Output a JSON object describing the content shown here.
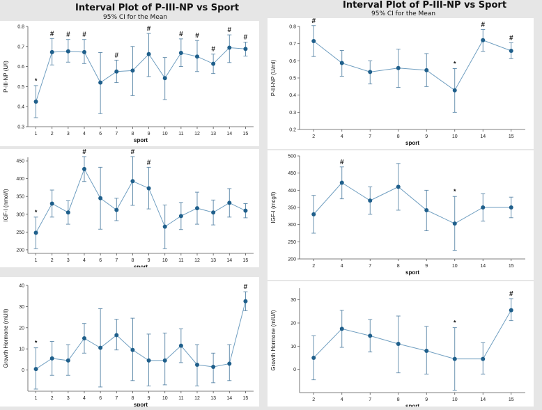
{
  "left_header": {
    "title": "Interval Plot of P-III-NP vs Sport",
    "subtitle": "95% CI for the Mean"
  },
  "right_header": {
    "title": "Interval Plot of P-III-NP vs Sport",
    "subtitle": "95% CI for the Mean"
  },
  "colors": {
    "line": "#6f9ec0",
    "marker": "#1f5f8b",
    "errorbar": "#5b87a8"
  },
  "chart_data": [
    {
      "type": "interval",
      "position": "top-left",
      "categories": [
        "1",
        "2",
        "3",
        "4",
        "6",
        "7",
        "8",
        "9",
        "10",
        "11",
        "12",
        "13",
        "14",
        "15"
      ],
      "means": [
        0.425,
        0.672,
        0.676,
        0.672,
        0.52,
        0.575,
        0.58,
        0.662,
        0.542,
        0.668,
        0.65,
        0.614,
        0.694,
        0.688
      ],
      "lower": [
        0.345,
        0.608,
        0.622,
        0.615,
        0.365,
        0.52,
        0.455,
        0.55,
        0.435,
        0.6,
        0.575,
        0.565,
        0.62,
        0.652
      ],
      "upper": [
        0.505,
        0.74,
        0.735,
        0.735,
        0.67,
        0.632,
        0.7,
        0.765,
        0.645,
        0.738,
        0.73,
        0.662,
        0.758,
        0.722
      ],
      "marks": [
        "*",
        "#",
        "#",
        "#",
        "",
        "#",
        "",
        "#",
        "",
        "#",
        "#",
        "#",
        "#",
        "#"
      ],
      "ylim": [
        0.3,
        0.8
      ],
      "yticks": [
        0.3,
        0.4,
        0.5,
        0.6,
        0.7,
        0.8
      ],
      "ylabel": "P-III-NP (U/l)",
      "xlabel": "sport"
    },
    {
      "type": "interval",
      "position": "top-right",
      "categories": [
        "2",
        "4",
        "7",
        "8",
        "9",
        "10",
        "14",
        "15"
      ],
      "means": [
        0.715,
        0.587,
        0.535,
        0.558,
        0.545,
        0.428,
        0.72,
        0.658
      ],
      "lower": [
        0.625,
        0.51,
        0.465,
        0.445,
        0.45,
        0.3,
        0.655,
        0.612
      ],
      "upper": [
        0.805,
        0.66,
        0.6,
        0.668,
        0.642,
        0.555,
        0.782,
        0.705
      ],
      "marks": [
        "#",
        "",
        "",
        "",
        "",
        "*",
        "#",
        "#"
      ],
      "ylim": [
        0.2,
        0.8
      ],
      "yticks": [
        0.2,
        0.3,
        0.4,
        0.5,
        0.6,
        0.7,
        0.8
      ],
      "ylabel": "P-III-NP (U/ml)",
      "xlabel": "sport"
    },
    {
      "type": "interval",
      "position": "middle-left",
      "categories": [
        "1",
        "2",
        "3",
        "4",
        "6",
        "7",
        "8",
        "9",
        "10",
        "11",
        "12",
        "13",
        "14",
        "15"
      ],
      "means": [
        248,
        330,
        305,
        427,
        345,
        312,
        393,
        373,
        265,
        295,
        317,
        305,
        332,
        310
      ],
      "lower": [
        203,
        292,
        272,
        392,
        258,
        282,
        325,
        315,
        203,
        257,
        272,
        270,
        292,
        290
      ],
      "upper": [
        292,
        368,
        338,
        462,
        432,
        345,
        462,
        432,
        326,
        333,
        362,
        340,
        372,
        330
      ],
      "marks": [
        "*",
        "",
        "",
        "#",
        "",
        "",
        "#",
        "#",
        "",
        "",
        "",
        "",
        "",
        ""
      ],
      "ylim": [
        190,
        460
      ],
      "yticks": [
        200,
        250,
        300,
        350,
        400,
        450
      ],
      "ylabel": "IGF-I (nmol/l)",
      "xlabel": "sport"
    },
    {
      "type": "interval",
      "position": "middle-right",
      "categories": [
        "2",
        "4",
        "7",
        "8",
        "9",
        "10",
        "14",
        "15"
      ],
      "means": [
        330,
        422,
        370,
        410,
        342,
        303,
        350,
        350
      ],
      "lower": [
        275,
        375,
        330,
        342,
        282,
        225,
        310,
        320
      ],
      "upper": [
        385,
        468,
        410,
        478,
        400,
        382,
        390,
        380
      ],
      "marks": [
        "",
        "#",
        "",
        "",
        "",
        "*",
        "",
        ""
      ],
      "ylim": [
        200,
        500
      ],
      "yticks": [
        200,
        250,
        300,
        350,
        400,
        450,
        500
      ],
      "ylabel": "IGF-I (mcg/l)",
      "xlabel": "sport"
    },
    {
      "type": "interval",
      "position": "bottom-left",
      "categories": [
        "1",
        "2",
        "3",
        "4",
        "6",
        "7",
        "8",
        "9",
        "10",
        "11",
        "12",
        "13",
        "14",
        "15"
      ],
      "means": [
        0.5,
        5.5,
        4.5,
        15,
        10.5,
        16.5,
        9.5,
        4.5,
        4.5,
        11.5,
        2.5,
        1.5,
        3,
        32.5
      ],
      "lower": [
        -9,
        -2.5,
        -2.5,
        8,
        -8,
        9.5,
        -5,
        -7.5,
        -7,
        3.5,
        -7.5,
        -6,
        -5,
        28
      ],
      "upper": [
        10.5,
        13.5,
        12,
        22,
        29,
        24,
        24.5,
        17,
        17.5,
        19.5,
        12,
        8,
        12,
        37
      ],
      "marks": [
        "*",
        "",
        "",
        "",
        "",
        "",
        "",
        "",
        "",
        "",
        "",
        "",
        "",
        "#"
      ],
      "ylim": [
        -10,
        40
      ],
      "yticks": [
        0,
        10,
        20,
        30,
        40
      ],
      "ylabel": "Growth Hormone (mU/l)",
      "xlabel": "sport"
    },
    {
      "type": "interval",
      "position": "bottom-right",
      "categories": [
        "2",
        "4",
        "7",
        "8",
        "9",
        "10",
        "14",
        "15"
      ],
      "means": [
        5,
        17.5,
        14.5,
        11,
        8,
        4.5,
        4.5,
        25.5
      ],
      "lower": [
        -4.5,
        9.5,
        7.5,
        -1.5,
        -2,
        -9,
        -2,
        21
      ],
      "upper": [
        14.5,
        25.5,
        21.5,
        23,
        18.5,
        18,
        11.5,
        30.5
      ],
      "marks": [
        "",
        "",
        "",
        "",
        "",
        "*",
        "",
        "#"
      ],
      "ylim": [
        -10,
        35
      ],
      "yticks": [
        0,
        10,
        20,
        30
      ],
      "ylabel": "Growth Hormone (mIU/l)",
      "xlabel": "sport"
    }
  ]
}
